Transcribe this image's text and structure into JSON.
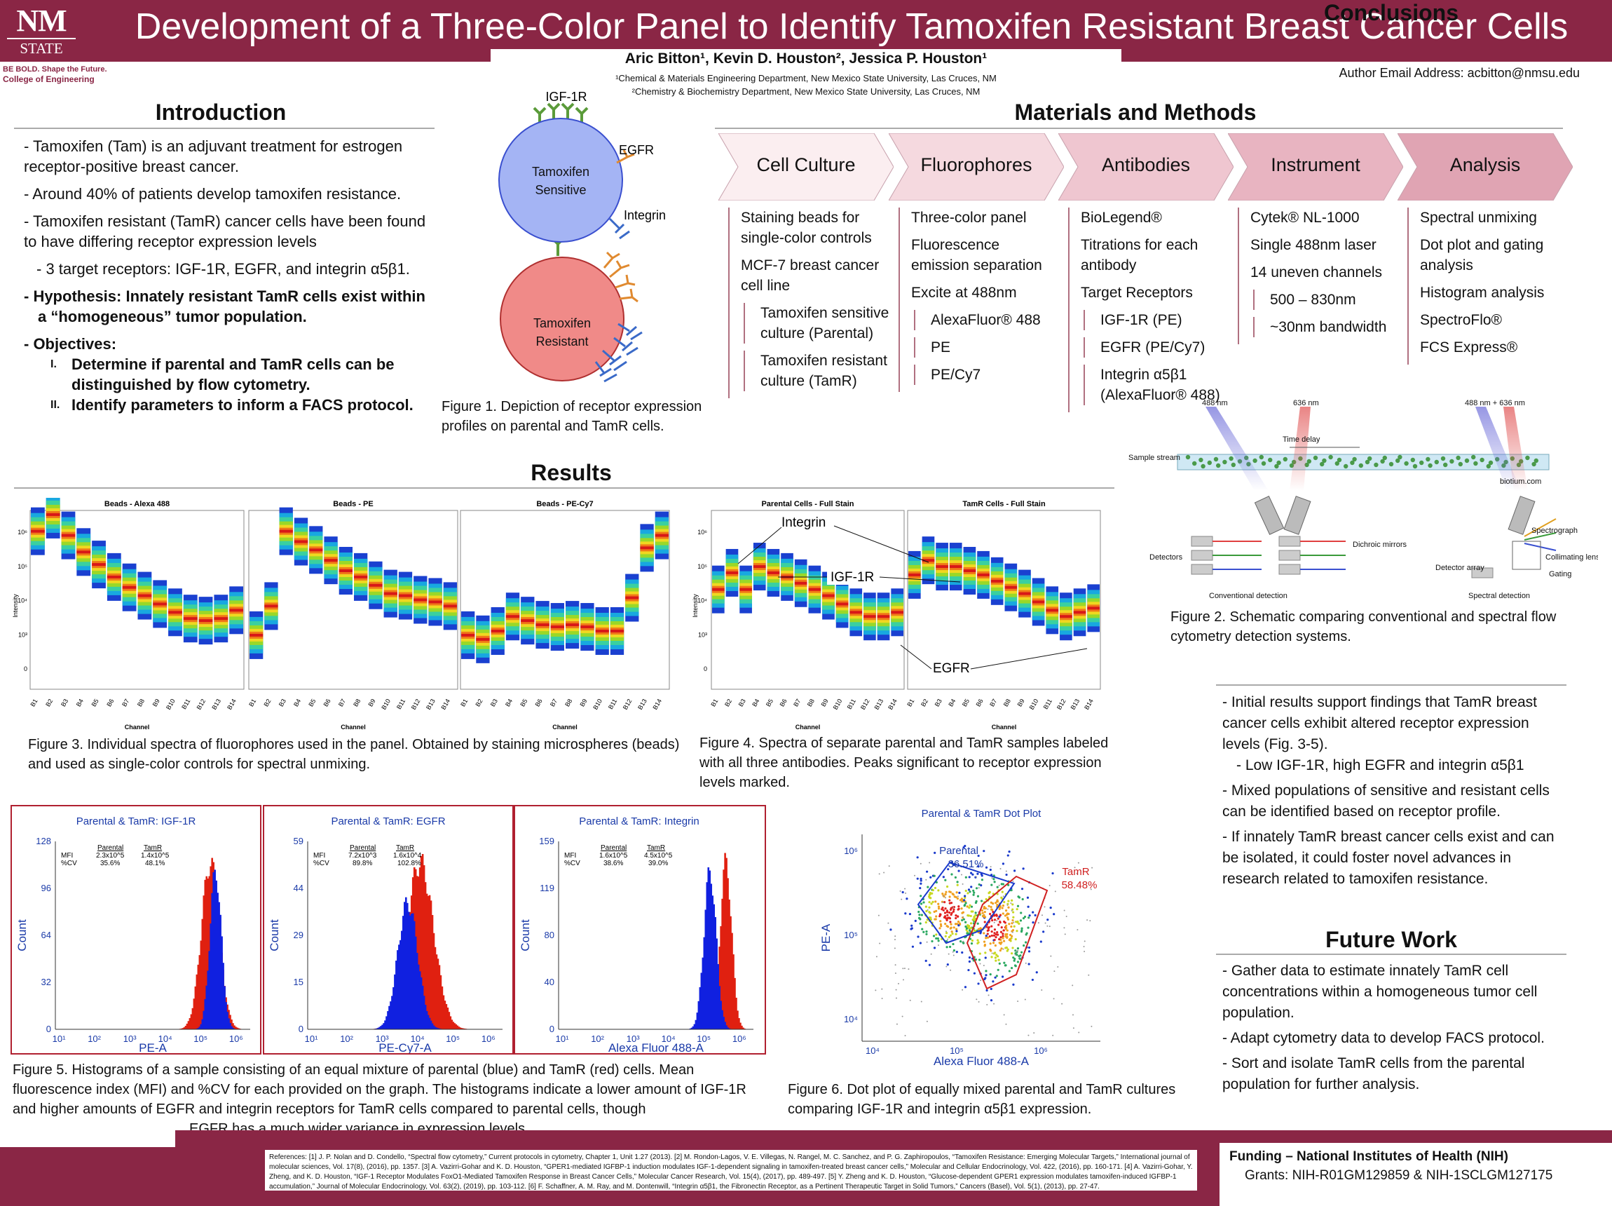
{
  "header": {
    "logo_top": "NM",
    "logo_bottom": "STATE",
    "title": "Development of a Three-Color Panel to Identify Tamoxifen Resistant Breast Cancer Cells",
    "tagline1": "BE BOLD. Shape the Future.",
    "tagline2": "College of Engineering",
    "authors": "Aric Bitton¹, Kevin D. Houston², Jessica P. Houston¹",
    "affil1": "¹Chemical & Materials Engineering Department, New Mexico State University, Las Cruces, NM",
    "affil2": "²Chemistry & Biochemistry Department, New Mexico State University, Las Cruces, NM",
    "email": "Author Email Address: acbitton@nmsu.edu"
  },
  "intro": {
    "heading": "Introduction",
    "b1": "-  Tamoxifen (Tam) is an adjuvant treatment for estrogen receptor-positive breast cancer.",
    "b2": "-  Around 40% of patients develop tamoxifen resistance.",
    "b3": "-  Tamoxifen resistant (TamR) cancer cells have been found to have differing receptor expression levels",
    "b4": "-  3 target receptors: IGF-1R, EGFR, and integrin α5β1.",
    "b5": "-  Hypothesis: Innately resistant TamR cells exist within a “homogeneous” tumor population.",
    "b6": "-  Objectives:",
    "obj1_num": "I.",
    "obj1": "Determine if parental and TamR cells can be distinguished by flow cytometry.",
    "obj2_num": "II.",
    "obj2": "Identify parameters to inform a FACS protocol."
  },
  "fig1": {
    "igf": "IGF-1R",
    "egfr": "EGFR",
    "integrin": "Integrin",
    "sensitive": "Tamoxifen Sensitive",
    "resistant": "Tamoxifen Resistant",
    "caption": "Figure 1. Depiction of receptor expression profiles on parental and TamR cells.",
    "sens_color": "#a4b4f4",
    "res_color": "#f08a88"
  },
  "methods": {
    "heading": "Materials and Methods",
    "cols": [
      {
        "title": "Cell Culture",
        "items": [
          "Staining beads for single-color controls",
          "MCF-7 breast cancer cell line",
          "Tamoxifen sensitive culture (Parental)",
          "Tamoxifen resistant culture (TamR)"
        ]
      },
      {
        "title": "Fluorophores",
        "items": [
          "Three-color panel",
          "Fluorescence emission separation",
          "Excite at 488nm",
          "AlexaFluor® 488",
          "PE",
          "PE/Cy7"
        ]
      },
      {
        "title": "Antibodies",
        "items": [
          "BioLegend®",
          "Titrations for each antibody",
          "Target Receptors",
          "IGF-1R (PE)",
          "EGFR (PE/Cy7)",
          "Integrin α5β1 (AlexaFluor® 488)"
        ]
      },
      {
        "title": "Instrument",
        "items": [
          "Cytek® NL-1000",
          "Single 488nm laser",
          "14 uneven channels",
          "500 – 830nm",
          "~30nm bandwidth"
        ]
      },
      {
        "title": "Analysis",
        "items": [
          "Spectral unmixing",
          "Dot plot and gating analysis",
          "Histogram analysis",
          "SpectroFlo®",
          "FCS Express®"
        ]
      }
    ]
  },
  "fig2": {
    "l488": "488 nm",
    "l636": "636 nm",
    "lboth": "488 nm + 636 nm",
    "time_delay": "Time delay",
    "sample": "Sample stream",
    "biotium": "biotium.com",
    "detectors": "Detectors",
    "dichroic": "Dichroic mirrors",
    "conv": "Conventional detection",
    "spectrograph": "Spectrograph",
    "collimating": "Collimating lens",
    "gating": "Gating",
    "det_array": "Detector array",
    "spectral": "Spectral detection",
    "caption": "Figure 2. Schematic comparing conventional and spectral flow cytometry detection systems."
  },
  "results": {
    "heading": "Results"
  },
  "fig3": {
    "titles": [
      "Beads - Alexa 488",
      "Beads - PE",
      "Beads - PE-Cy7"
    ],
    "ylabel": "Intensity",
    "xlabel": "Channel",
    "channels": [
      "B1",
      "B2",
      "B3",
      "B4",
      "B5",
      "B6",
      "B7",
      "B8",
      "B9",
      "B10",
      "B11",
      "B12",
      "B13",
      "B14"
    ],
    "yticks": [
      "10⁶",
      "10⁵",
      "10⁴",
      "10³",
      "0"
    ],
    "spectra": [
      [
        6.4,
        6.8,
        6.3,
        5.9,
        5.6,
        5.3,
        5.05,
        4.85,
        4.65,
        4.45,
        4.3,
        4.25,
        4.3,
        4.5
      ],
      [
        3.9,
        4.6,
        6.4,
        6.15,
        5.95,
        5.7,
        5.45,
        5.3,
        5.1,
        4.9,
        4.85,
        4.75,
        4.7,
        4.6
      ],
      [
        3.9,
        3.8,
        4.0,
        4.35,
        4.25,
        4.15,
        4.1,
        4.15,
        4.1,
        4.0,
        4.0,
        4.8,
        6.0,
        6.3
      ]
    ],
    "caption": "Figure 3. Individual spectra of fluorophores used in the panel. Obtained by staining microspheres (beads) and used as single-color controls for spectral unmixing."
  },
  "fig4": {
    "titles": [
      "Parental Cells - Full Stain",
      "TamR Cells - Full Stain"
    ],
    "ylabel": "Intensity",
    "xlabel": "Channel",
    "channels": [
      "B1",
      "B2",
      "B3",
      "B4",
      "B5",
      "B6",
      "B7",
      "B8",
      "B9",
      "B10",
      "B11",
      "B12",
      "B13",
      "B14"
    ],
    "yticks": [
      "10⁶",
      "10⁵",
      "10⁴",
      "10³",
      "0"
    ],
    "integrin": "Integrin",
    "igf": "IGF-1R",
    "egfr": "EGFR",
    "spectra": [
      [
        5.0,
        5.4,
        5.0,
        5.55,
        5.4,
        5.3,
        5.15,
        5.0,
        4.85,
        4.65,
        4.45,
        4.35,
        4.35,
        4.45
      ],
      [
        5.35,
        5.7,
        5.55,
        5.55,
        5.45,
        5.35,
        5.2,
        5.05,
        4.9,
        4.7,
        4.5,
        4.35,
        4.45,
        4.55
      ]
    ],
    "caption": "Figure 4. Spectra of separate parental and TamR samples labeled with all three antibodies. Peaks significant to receptor expression levels marked."
  },
  "fig5": {
    "panels": [
      {
        "title": "Parental & TamR: IGF-1R",
        "xlabel": "PE-A",
        "ymax": "128",
        "yticks": [
          "128",
          "96",
          "64",
          "32",
          "0"
        ],
        "mfi": [
          "2.3x10^5",
          "1.4x10^5"
        ],
        "cv": [
          "35.6%",
          "48.1%"
        ],
        "blue_peak": 5.4,
        "blue_w": 0.16,
        "red_peak": 5.25,
        "red_w": 0.25
      },
      {
        "title": "Parental & TamR: EGFR",
        "xlabel": "PE-Cy7-A",
        "ymax": "59",
        "yticks": [
          "59",
          "44",
          "29",
          "15",
          "0"
        ],
        "mfi": [
          "7.2x10^3",
          "1.6x10^4"
        ],
        "cv": [
          "89.8%",
          "102.8%"
        ],
        "blue_peak": 3.7,
        "blue_w": 0.28,
        "red_peak": 4.05,
        "red_w": 0.38
      },
      {
        "title": "Parental & TamR: Integrin",
        "xlabel": "Alexa Fluor 488-A",
        "ymax": "159",
        "yticks": [
          "159",
          "119",
          "80",
          "40",
          "0"
        ],
        "mfi": [
          "1.6x10^5",
          "4.5x10^5"
        ],
        "cv": [
          "38.6%",
          "39.0%"
        ],
        "blue_peak": 5.15,
        "blue_w": 0.17,
        "red_peak": 5.6,
        "red_w": 0.16
      }
    ],
    "ylabel": "Count",
    "xticks": [
      "10¹",
      "10²",
      "10³",
      "10⁴",
      "10⁵",
      "10⁶"
    ],
    "mfi_label": "MFI",
    "cv_label": "%CV",
    "col_parental": "Parental",
    "col_tamr": "TamR",
    "caption": "Figure 5. Histograms of a sample consisting of an equal mixture of parental (blue) and TamR (red) cells. Mean fluorescence index (MFI) and %CV for each provided on the graph. The histograms indicate a lower amount of IGF-1R and higher amounts of EGFR and integrin receptors for TamR cells compared to parental cells, though",
    "caption_end": "EGFR has a much wider variance in expression levels."
  },
  "fig6": {
    "title": "Parental & TamR Dot Plot",
    "parental": "Parental",
    "parental_pct": "36.51%",
    "tamr": "TamR",
    "tamr_pct": "58.48%",
    "ylabel": "PE-A",
    "xlabel": "Alexa Fluor 488-A",
    "yticks": [
      "10⁶",
      "10⁵",
      "10⁴"
    ],
    "xticks": [
      "10⁴",
      "10⁵",
      "10⁶"
    ],
    "caption": "Figure 6. Dot plot of equally mixed parental and TamR cultures comparing IGF-1R and integrin α5β1 expression."
  },
  "conclusions": {
    "heading": "Conclusions",
    "c1": "- Initial results support findings that TamR breast cancer cells exhibit altered receptor expression levels (Fig. 3-5).",
    "c2": "- Low IGF-1R, high EGFR and integrin α5β1",
    "c3": "- Mixed populations of sensitive and resistant cells can be identified based on receptor profile.",
    "c4": "- If innately TamR breast cancer cells exist and can be isolated, it could foster novel advances in research related to tamoxifen resistance."
  },
  "future": {
    "heading": "Future Work",
    "f1": "- Gather data to estimate innately TamR cell concentrations within a homogeneous tumor cell population.",
    "f2": "- Adapt cytometry data to develop FACS protocol.",
    "f3": "- Sort and isolate TamR cells from the parental population for further analysis."
  },
  "funding": {
    "title": "Funding – National Institutes of Health (NIH)",
    "grants": "Grants: NIH-R01GM129859 & NIH-1SCLGM127175"
  },
  "references": "References: [1] J. P. Nolan and D. Condello, “Spectral flow cytometry,” Current protocols in cytometry, Chapter 1, Unit 1.27 (2013). [2] M. Rondon-Lagos, V. E. Villegas, N. Rangel, M. C. Sanchez, and P. G. Zaphiropoulos, “Tamoxifen Resistance: Emerging Molecular Targets,” International journal of molecular sciences, Vol. 17(8), (2016), pp. 1357. [3] A. Vazirri-Gohar and K. D. Houston, “GPER1-mediated IGFBP-1 induction modulates IGF-1-dependent signaling in tamoxifen-treated breast cancer cells,” Molecular and Cellular Endocrinology, Vol. 422, (2016), pp. 160-171. [4] A. Vazirri-Gohar, Y. Zheng, and K. D. Houston, “IGF-1 Receptor Modulates FoxO1-Mediated Tamoxifen Response in Breast Cancer Cells,” Molecular Cancer Research, Vol. 15(4), (2017), pp. 489-497. [5] Y. Zheng and K. D. Houston, “Glucose-dependent GPER1 expression modulates tamoxifen-induced IGFBP-1 accumulation,” Journal of Molecular Endocrinology, Vol. 63(2), (2019), pp. 103-112. [6] F. Schaffner, A. M. Ray, and M. Dontenwill, “Integrin α5β1, the Fibronectin Receptor, as a Pertinent Therapeutic Target in Solid Tumors,” Cancers (Basel), Vol. 5(1), (2013), pp. 27-47.",
  "colors": {
    "brand": "#8a2645",
    "parental": "#1020e0",
    "tamr": "#e02010"
  }
}
